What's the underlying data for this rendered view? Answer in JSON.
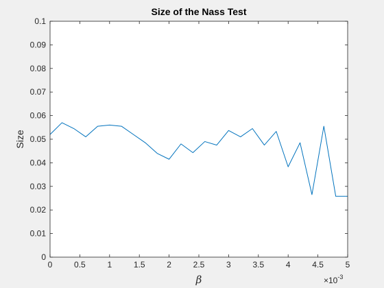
{
  "chart_data": {
    "type": "line",
    "title": "Size of the Nass Test",
    "xlabel": "β",
    "ylabel": "Size",
    "x_exponent_label": "×10",
    "x_exponent_power": "-3",
    "xlim": [
      0,
      5
    ],
    "ylim": [
      0,
      0.1
    ],
    "x_scale_factor": 0.001,
    "xticks": [
      "0",
      "0.5",
      "1",
      "1.5",
      "2",
      "2.5",
      "3",
      "3.5",
      "4",
      "4.5",
      "5"
    ],
    "yticks": [
      "0",
      "0.01",
      "0.02",
      "0.03",
      "0.04",
      "0.05",
      "0.06",
      "0.07",
      "0.08",
      "0.09",
      "0.1"
    ],
    "grid": false,
    "series": [
      {
        "color": "#0072BD",
        "x": [
          0,
          0.2,
          0.4,
          0.6,
          0.8,
          1.0,
          1.2,
          1.4,
          1.6,
          1.8,
          2.0,
          2.2,
          2.4,
          2.6,
          2.8,
          3.0,
          3.2,
          3.4,
          3.6,
          3.8,
          4.0,
          4.2,
          4.4,
          4.6,
          4.8,
          5.0
        ],
        "values": [
          0.052,
          0.057,
          0.0545,
          0.051,
          0.0555,
          0.056,
          0.0555,
          0.052,
          0.0485,
          0.044,
          0.0415,
          0.048,
          0.0443,
          0.049,
          0.0475,
          0.0537,
          0.051,
          0.0545,
          0.0475,
          0.0533,
          0.0383,
          0.0485,
          0.0265,
          0.0555,
          0.0258,
          0.0258
        ]
      }
    ]
  }
}
